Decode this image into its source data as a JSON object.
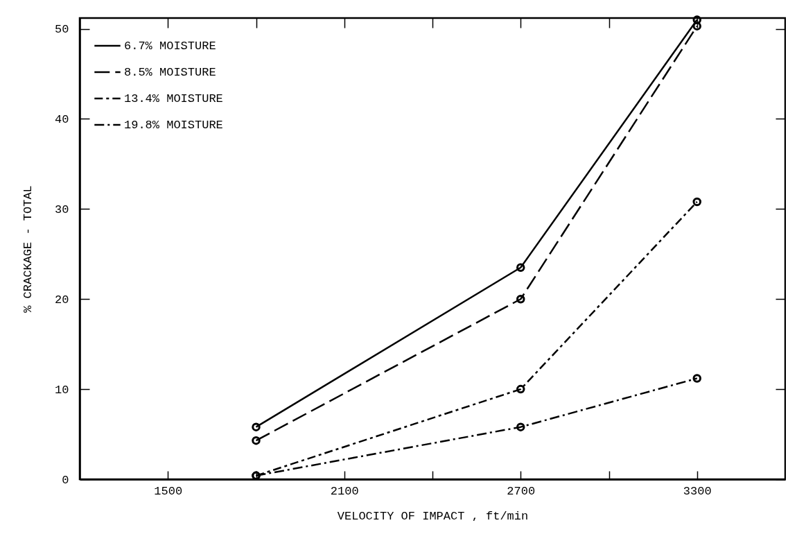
{
  "chart_data": {
    "type": "line",
    "xlabel": "VELOCITY OF IMPACT , ft/min",
    "ylabel": "% CRACKAGE - TOTAL",
    "x": [
      1800,
      2700,
      3300
    ],
    "series": [
      {
        "name": "6.7% MOISTURE",
        "color": "#000000",
        "line_style": "solid",
        "values": [
          5.8,
          23.5,
          51
        ]
      },
      {
        "name": "8.5% MOISTURE",
        "color": "#000000",
        "line_style": "dashed",
        "values": [
          4.3,
          20.0,
          50.3
        ]
      },
      {
        "name": "13.4% MOISTURE",
        "color": "#000000",
        "line_style": "shortdash",
        "values": [
          0.4,
          10.0,
          30.8
        ]
      },
      {
        "name": "19.8% MOISTURE",
        "color": "#000000",
        "line_style": "dashdot",
        "values": [
          0.4,
          5.8,
          11.2
        ]
      }
    ],
    "xlim": [
      1200,
      3600
    ],
    "ylim": [
      0,
      51.2
    ],
    "xticks": [
      1500,
      {
        "value": 1800,
        "label": null
      },
      2100,
      {
        "value": 2400,
        "label": null
      },
      2700,
      {
        "value": 3000,
        "label": null
      },
      3300
    ],
    "yticks": [
      0,
      10,
      20,
      30,
      40,
      50
    ],
    "marker": "circle",
    "legend": "top left",
    "grid": false
  }
}
